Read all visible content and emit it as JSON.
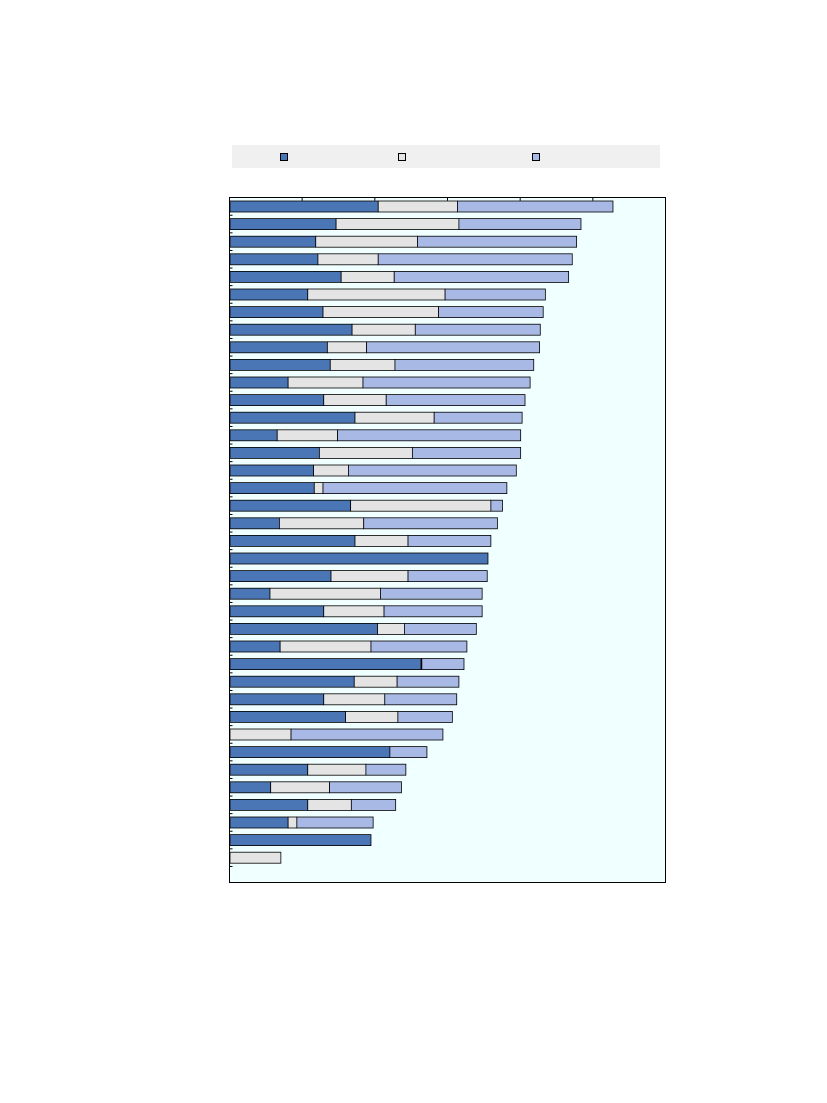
{
  "chart_data": {
    "type": "bar",
    "orientation": "horizontal",
    "stacked": true,
    "title": "",
    "xlabel": "",
    "ylabel": "",
    "xlim": [
      0,
      60
    ],
    "grid": false,
    "legend_position": "top",
    "colors": {
      "plot_background": "#f0ffff",
      "legend_background": "#f0f0f0",
      "series": [
        "#4a76b5",
        "#e4e4e4",
        "#a8b9e6"
      ]
    },
    "series": [
      {
        "values": [
          20.4,
          14.6,
          11.8,
          12.1,
          15.3,
          10.7,
          12.8,
          16.8,
          13.4,
          13.8,
          8.0,
          12.9,
          17.2,
          6.5,
          12.3,
          11.5,
          11.6,
          16.6,
          6.8,
          17.2,
          35.5,
          13.9,
          5.5,
          12.9,
          20.3,
          6.9,
          26.3,
          17.1,
          12.9,
          15.9,
          0,
          22.0,
          10.7,
          5.6,
          10.7,
          8.0,
          19.4,
          0
        ],
        "colors": [
          "#4a76b5",
          "#4a76b5",
          "#4a76b5",
          "#4a76b5",
          "#4a76b5",
          "#4a76b5",
          "#4a76b5",
          "#4a76b5",
          "#4a76b5",
          "#4a76b5",
          "#4a76b5",
          "#4a76b5",
          "#4a76b5",
          "#4a76b5",
          "#4a76b5",
          "#4a76b5",
          "#4a76b5",
          "#4a76b5",
          "#4a76b5",
          "#4a76b5",
          "#4a76b5",
          "#4a76b5",
          "#4a76b5",
          "#4a76b5",
          "#4a76b5",
          "#4a76b5",
          "#4a76b5",
          "#4a76b5",
          "#4a76b5",
          "#4a76b5",
          "#4a76b5",
          "#4a76b5",
          "#4a76b5",
          "#4a76b5",
          "#4a76b5",
          "#4a76b5",
          "#4a76b5",
          "#4a76b5"
        ]
      },
      {
        "values": [
          10.9,
          16.9,
          14.0,
          8.3,
          7.3,
          18.9,
          15.9,
          8.7,
          5.4,
          8.9,
          10.3,
          8.6,
          10.9,
          8.3,
          12.8,
          4.8,
          1.2,
          19.3,
          11.6,
          7.3,
          0,
          10.6,
          15.2,
          8.3,
          3.7,
          12.5,
          0.1,
          5.9,
          8.4,
          7.2,
          8.4,
          0,
          8.0,
          8.1,
          6.0,
          1.2,
          0,
          7.0
        ]
      },
      {
        "values": [
          21.4,
          16.8,
          21.9,
          26.7,
          24.0,
          13.8,
          14.4,
          17.2,
          23.8,
          19.1,
          23.0,
          19.1,
          12.1,
          25.2,
          14.9,
          23.1,
          25.3,
          1.6,
          18.4,
          11.4,
          0,
          10.9,
          14.0,
          13.5,
          9.9,
          13.2,
          5.8,
          8.5,
          9.9,
          7.5,
          20.9,
          5.1,
          5.5,
          9.9,
          6.1,
          10.5,
          0,
          0
        ]
      }
    ]
  }
}
